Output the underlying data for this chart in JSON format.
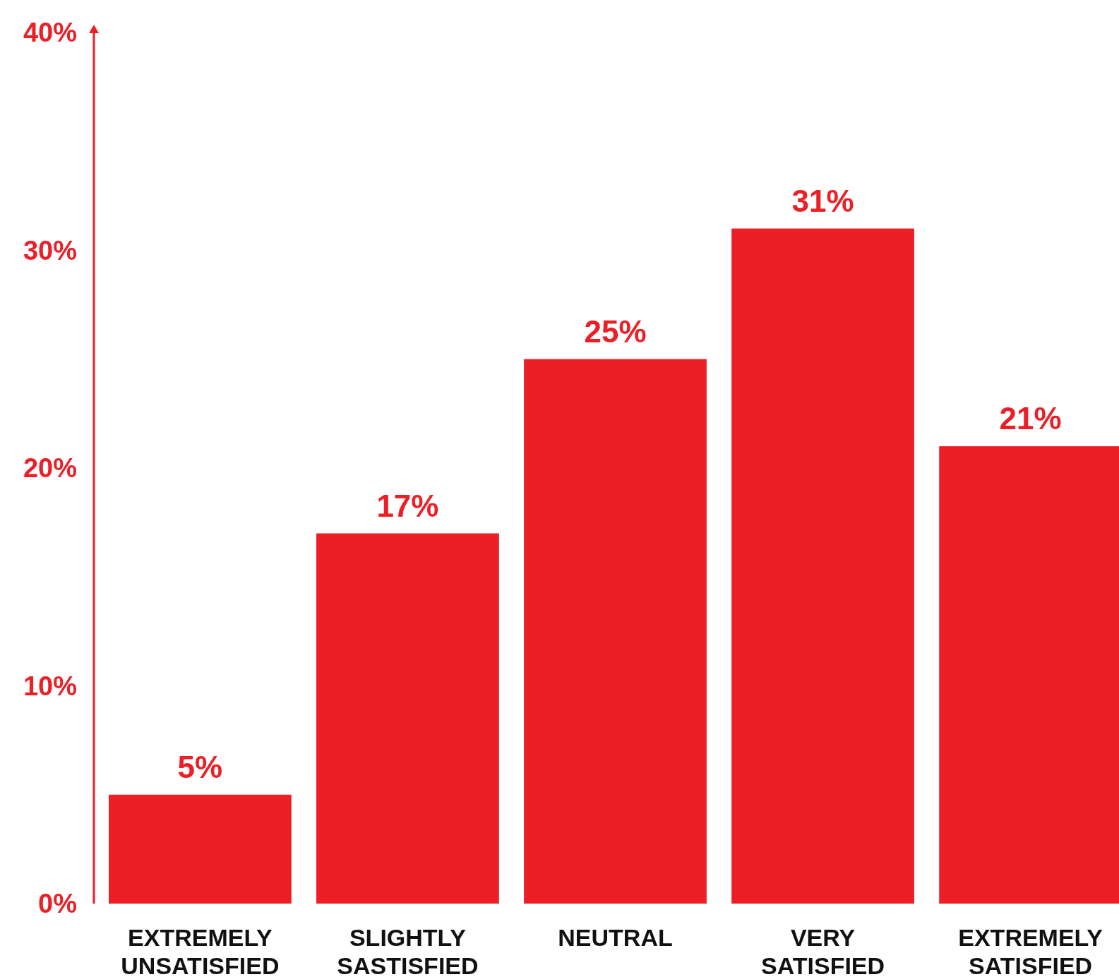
{
  "chart_data": {
    "type": "bar",
    "categories": [
      "EXTREMELY UNSATISFIED",
      "SLIGHTLY SASTISFIED",
      "NEUTRAL",
      "VERY SATISFIED",
      "EXTREMELY SATISFIED"
    ],
    "values": [
      5,
      17,
      25,
      31,
      21
    ],
    "value_labels": [
      "5%",
      "17%",
      "25%",
      "31%",
      "21%"
    ],
    "color": "#ec1f27",
    "ylim": [
      0,
      40
    ],
    "yticks": [
      {
        "value": 0,
        "label": "0%"
      },
      {
        "value": 10,
        "label": "10%"
      },
      {
        "value": 20,
        "label": "20%"
      },
      {
        "value": 30,
        "label": "30%"
      },
      {
        "value": 40,
        "label": "40%"
      }
    ],
    "grid": false
  }
}
